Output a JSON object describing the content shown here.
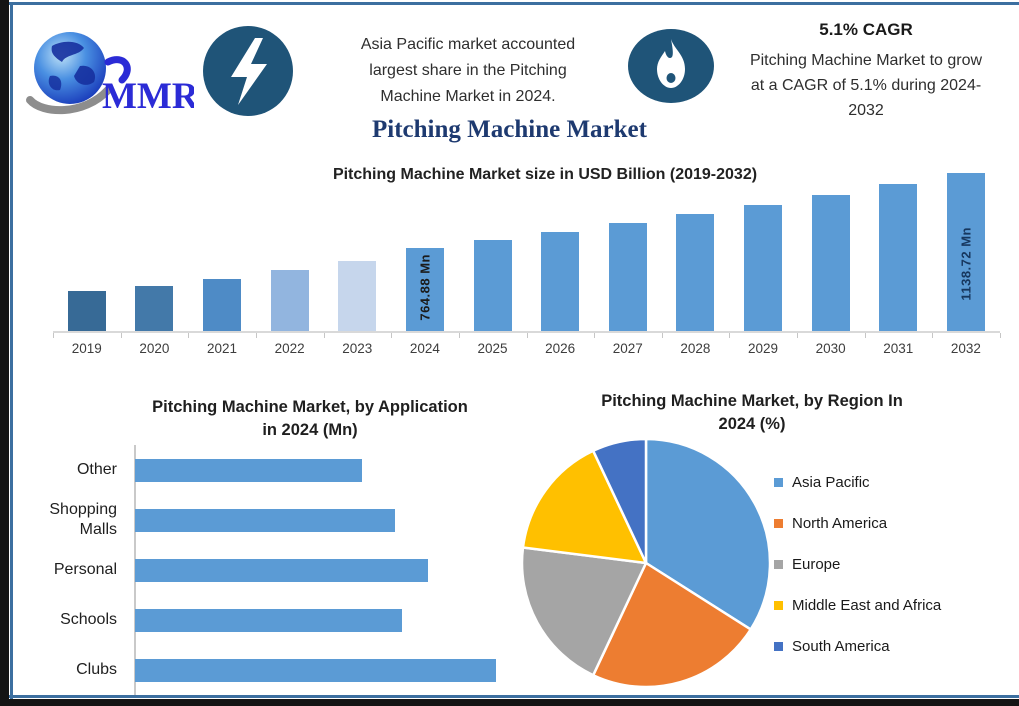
{
  "header": {
    "logo_text": "MMR",
    "highlight_left": {
      "icon": "lightning-icon",
      "lines": [
        "Asia Pacific market accounted",
        "largest share in the Pitching",
        "Machine Market in 2024."
      ]
    },
    "highlight_right": {
      "icon": "flame-icon",
      "title": "5.1% CAGR",
      "lines": [
        "Pitching Machine Market to grow",
        "at a CAGR of 5.1% during 2024-",
        "2032"
      ]
    },
    "main_title": "Pitching Machine Market"
  },
  "colors": {
    "accent_blue": "#5B9BD5",
    "badge_blue": "#1f5478",
    "border_blue": "#3c6fa0",
    "title_navy": "#1e3a70"
  },
  "chart_data": [
    {
      "id": "market_size",
      "type": "bar",
      "title": "Pitching Machine Market size in USD Billion (2019-2032)",
      "categories": [
        "2019",
        "2020",
        "2021",
        "2022",
        "2023",
        "2024",
        "2025",
        "2026",
        "2027",
        "2028",
        "2029",
        "2030",
        "2031",
        "2032"
      ],
      "values": [
        550,
        575,
        610,
        655,
        700,
        764.88,
        803.88,
        844.88,
        887.97,
        933.25,
        980.85,
        1030.87,
        1083.44,
        1138.72
      ],
      "unit": "Mn",
      "data_labels": {
        "2024": "764.88 Mn",
        "2032": "1138.72 Mn"
      },
      "bar_colors": [
        "#376A96",
        "#4379A9",
        "#4E8BC6",
        "#92B5DF",
        "#C6D6EC",
        "#5B9BD5",
        "#5B9BD5",
        "#5B9BD5",
        "#5B9BD5",
        "#5B9BD5",
        "#5B9BD5",
        "#5B9BD5",
        "#5B9BD5",
        "#5B9BD5"
      ],
      "ylim": [
        350,
        1180
      ],
      "grid": false,
      "xlabel": "",
      "ylabel": ""
    },
    {
      "id": "by_application",
      "type": "bar",
      "orientation": "horizontal",
      "title_lines": [
        "Pitching Machine Market, by Application",
        "in 2024 (Mn)"
      ],
      "categories": [
        "Other",
        "Shopping Malls",
        "Personal",
        "Schools",
        "Clubs"
      ],
      "values": [
        123,
        141,
        159,
        145,
        196
      ],
      "unit": "Mn",
      "bar_color": "#5B9BD5",
      "xlim": [
        0,
        210
      ],
      "grid": false
    },
    {
      "id": "by_region",
      "type": "pie",
      "title_lines": [
        "Pitching Machine Market, by Region In",
        "2024 (%)"
      ],
      "slices": [
        {
          "label": "Asia Pacific",
          "value": 34,
          "color": "#5B9BD5"
        },
        {
          "label": "North America",
          "value": 23,
          "color": "#ED7D31"
        },
        {
          "label": "Europe",
          "value": 20,
          "color": "#A5A5A5"
        },
        {
          "label": "Middle East and Africa",
          "value": 16,
          "color": "#FFC000"
        },
        {
          "label": "South America",
          "value": 7,
          "color": "#4472C4"
        }
      ],
      "legend_position": "right"
    }
  ]
}
